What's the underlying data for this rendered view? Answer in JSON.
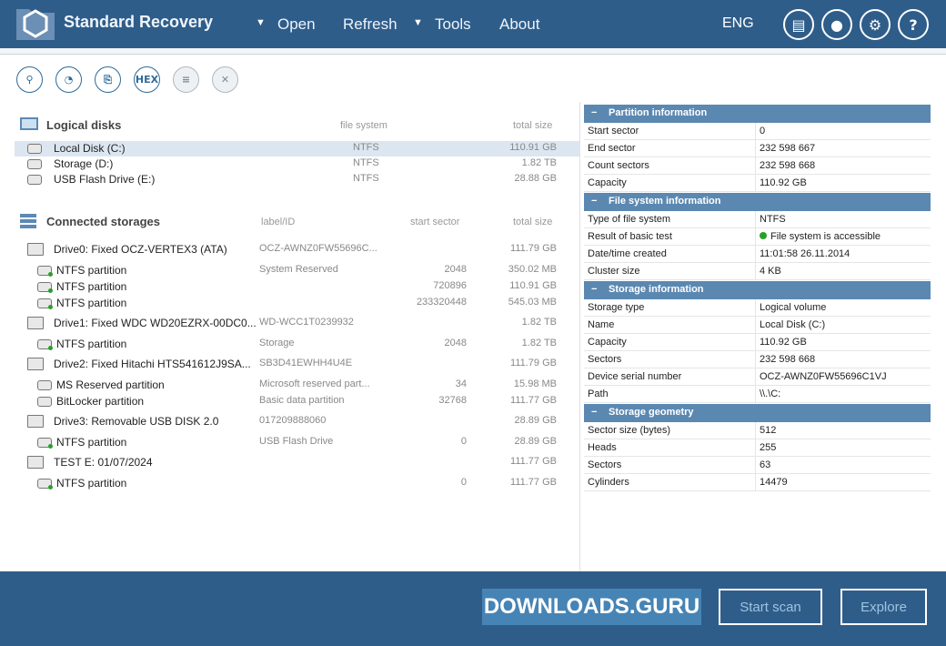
{
  "app": {
    "title": "Standard Recovery",
    "menu": [
      "Open",
      "Refresh",
      "Tools",
      "About"
    ],
    "language": "ENG"
  },
  "toolbar": {
    "hex": "HEX"
  },
  "logical": {
    "title": "Logical disks",
    "col_fs": "file system",
    "col_size": "total size",
    "items": [
      {
        "name": "Local Disk (C:)",
        "fs": "NTFS",
        "size": "110.91 GB"
      },
      {
        "name": "Storage (D:)",
        "fs": "NTFS",
        "size": "1.82 TB"
      },
      {
        "name": "USB Flash Drive (E:)",
        "fs": "NTFS",
        "size": "28.88 GB"
      }
    ]
  },
  "storages": {
    "title": "Connected storages",
    "col_label": "label/ID",
    "col_start": "start sector",
    "col_size": "total size",
    "items": [
      {
        "name": "Drive0: Fixed OCZ-VERTEX3 (ATA)",
        "label": "OCZ-AWNZ0FW55696C...",
        "start": "",
        "size": "111.79 GB",
        "level": 0
      },
      {
        "name": "NTFS partition",
        "label": "System Reserved",
        "start": "2048",
        "size": "350.02 MB",
        "level": 1
      },
      {
        "name": "NTFS partition",
        "label": "",
        "start": "720896",
        "size": "110.91 GB",
        "level": 1
      },
      {
        "name": "NTFS partition",
        "label": "",
        "start": "233320448",
        "size": "545.03 MB",
        "level": 1
      },
      {
        "name": "Drive1: Fixed WDC WD20EZRX-00DC0...",
        "label": "WD-WCC1T0239932",
        "start": "",
        "size": "1.82 TB",
        "level": 0
      },
      {
        "name": "NTFS partition",
        "label": "Storage",
        "start": "2048",
        "size": "1.82 TB",
        "level": 1
      },
      {
        "name": "Drive2: Fixed Hitachi HTS541612J9SA...",
        "label": "SB3D41EWHH4U4E",
        "start": "",
        "size": "111.79 GB",
        "level": 0
      },
      {
        "name": "MS Reserved partition",
        "label": "Microsoft reserved part...",
        "start": "34",
        "size": "15.98 MB",
        "level": 1
      },
      {
        "name": "BitLocker partition",
        "label": "Basic data partition",
        "start": "32768",
        "size": "111.77 GB",
        "level": 1
      },
      {
        "name": "Drive3: Removable USB DISK 2.0",
        "label": "017209888060",
        "start": "",
        "size": "28.89 GB",
        "level": 0
      },
      {
        "name": "NTFS partition",
        "label": "USB Flash Drive",
        "start": "0",
        "size": "28.89 GB",
        "level": 1
      },
      {
        "name": "TEST E: 01/07/2024",
        "label": "",
        "start": "",
        "size": "111.77 GB",
        "level": 0
      },
      {
        "name": "NTFS partition",
        "label": "",
        "start": "0",
        "size": "111.77 GB",
        "level": 1
      }
    ]
  },
  "info": [
    {
      "title": "Partition information",
      "rows": [
        [
          "Start sector",
          "0"
        ],
        [
          "End sector",
          "232 598 667"
        ],
        [
          "Count sectors",
          "232 598 668"
        ],
        [
          "Capacity",
          "110.92 GB"
        ]
      ]
    },
    {
      "title": "File system information",
      "rows": [
        [
          "Type of file system",
          "NTFS"
        ],
        [
          "Result of basic test",
          "File system is accessible"
        ],
        [
          "Date/time created",
          "11:01:58 26.11.2014"
        ],
        [
          "Cluster size",
          "4 KB"
        ]
      ]
    },
    {
      "title": "Storage information",
      "rows": [
        [
          "Storage type",
          "Logical volume"
        ],
        [
          "Name",
          "Local Disk (C:)"
        ],
        [
          "Capacity",
          "110.92 GB"
        ],
        [
          "Sectors",
          "232 598 668"
        ],
        [
          "Device serial number",
          "OCZ-AWNZ0FW55696C1VJ"
        ],
        [
          "Path",
          "\\\\.\\C:"
        ]
      ]
    },
    {
      "title": "Storage geometry",
      "rows": [
        [
          "Sector size (bytes)",
          "512"
        ],
        [
          "Heads",
          "255"
        ],
        [
          "Sectors",
          "63"
        ],
        [
          "Cylinders",
          "14479"
        ]
      ]
    }
  ],
  "buttons": {
    "start_scan": "Start scan",
    "explore": "Explore"
  },
  "watermark": "DOWNLOADS.GURU"
}
